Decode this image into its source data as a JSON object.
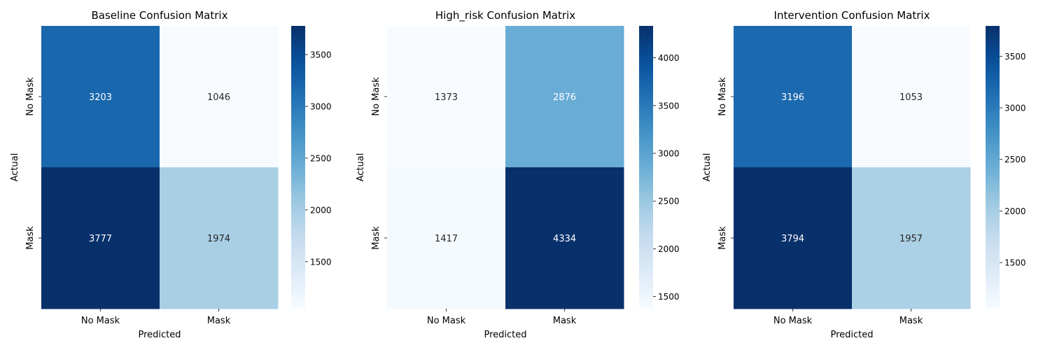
{
  "chart_data": [
    {
      "type": "heatmap",
      "title": "Baseline Confusion Matrix",
      "xlabel": "Predicted",
      "ylabel": "Actual",
      "x_categories": [
        "No Mask",
        "Mask"
      ],
      "y_categories": [
        "No Mask",
        "Mask"
      ],
      "values": [
        [
          3203,
          1046
        ],
        [
          3777,
          1974
        ]
      ],
      "colormap": "Blues",
      "colorbar": {
        "min": 1046,
        "max": 3777,
        "ticks": [
          1500,
          2000,
          2500,
          3000,
          3500
        ]
      }
    },
    {
      "type": "heatmap",
      "title": "High_risk Confusion Matrix",
      "xlabel": "Predicted",
      "ylabel": "Actual",
      "x_categories": [
        "No Mask",
        "Mask"
      ],
      "y_categories": [
        "No Mask",
        "Mask"
      ],
      "values": [
        [
          1373,
          2876
        ],
        [
          1417,
          4334
        ]
      ],
      "colormap": "Blues",
      "colorbar": {
        "min": 1373,
        "max": 4334,
        "ticks": [
          1500,
          2000,
          2500,
          3000,
          3500,
          4000
        ]
      }
    },
    {
      "type": "heatmap",
      "title": "Intervention Confusion Matrix",
      "xlabel": "Predicted",
      "ylabel": "Actual",
      "x_categories": [
        "No Mask",
        "Mask"
      ],
      "y_categories": [
        "No Mask",
        "Mask"
      ],
      "values": [
        [
          3196,
          1053
        ],
        [
          3794,
          1957
        ]
      ],
      "colormap": "Blues",
      "colorbar": {
        "min": 1053,
        "max": 3794,
        "ticks": [
          1500,
          2000,
          2500,
          3000,
          3500
        ]
      }
    }
  ]
}
